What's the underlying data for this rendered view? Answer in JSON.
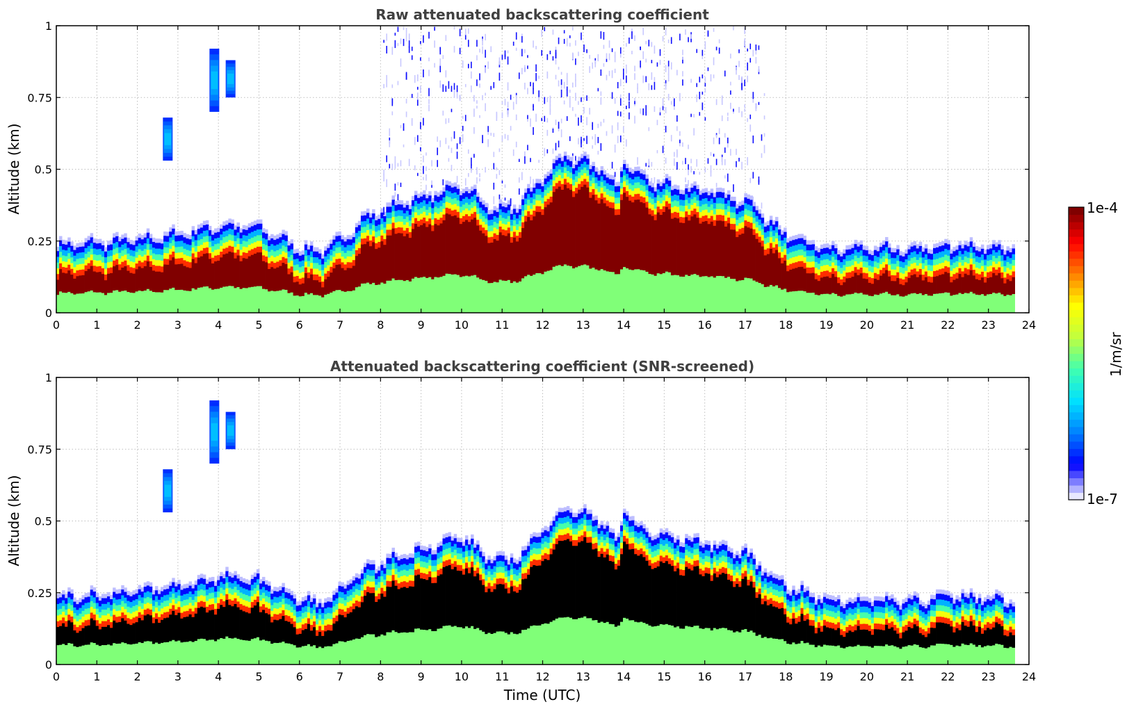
{
  "chart_data": [
    {
      "type": "heatmap",
      "title": "Raw attenuated backscattering coefficient",
      "xlabel": "",
      "ylabel": "Altitude (km)",
      "xlim": [
        0,
        24
      ],
      "ylim": [
        0,
        1
      ],
      "x_ticks": [
        "0",
        "1",
        "2",
        "3",
        "4",
        "5",
        "6",
        "7",
        "8",
        "9",
        "10",
        "11",
        "12",
        "13",
        "14",
        "15",
        "16",
        "17",
        "18",
        "19",
        "20",
        "21",
        "22",
        "23",
        "24"
      ],
      "y_ticks": [
        "0",
        "0.25",
        "0.5",
        "0.75",
        "1"
      ],
      "grid": true,
      "data_coverage_hours": [
        0,
        23.65
      ],
      "boundary_layer_top_km": {
        "x": [
          0,
          1,
          2,
          3,
          4,
          5,
          6,
          6.5,
          7,
          7.5,
          8,
          9,
          10,
          10.5,
          11,
          11.5,
          12,
          12.5,
          13,
          13.5,
          13.8,
          14,
          14.3,
          15,
          16,
          17,
          17.5,
          18,
          18.5,
          19,
          20,
          21,
          22,
          23,
          23.65
        ],
        "y": [
          0.21,
          0.22,
          0.23,
          0.25,
          0.28,
          0.27,
          0.2,
          0.19,
          0.23,
          0.3,
          0.33,
          0.38,
          0.42,
          0.36,
          0.33,
          0.37,
          0.45,
          0.52,
          0.5,
          0.47,
          0.4,
          0.52,
          0.45,
          0.42,
          0.4,
          0.36,
          0.3,
          0.25,
          0.22,
          0.2,
          0.2,
          0.2,
          0.21,
          0.21,
          0.2
        ]
      },
      "noise_region": "sparse signal above 0.5 km between 8 and 17 UTC"
    },
    {
      "type": "heatmap",
      "title": "Attenuated backscattering coefficient (SNR-screened)",
      "xlabel": "Time (UTC)",
      "ylabel": "Altitude (km)",
      "xlim": [
        0,
        24
      ],
      "ylim": [
        0,
        1
      ],
      "x_ticks": [
        "0",
        "1",
        "2",
        "3",
        "4",
        "5",
        "6",
        "7",
        "8",
        "9",
        "10",
        "11",
        "12",
        "13",
        "14",
        "15",
        "16",
        "17",
        "18",
        "19",
        "20",
        "21",
        "22",
        "23",
        "24"
      ],
      "y_ticks": [
        "0",
        "0.25",
        "0.5",
        "0.75",
        "1"
      ],
      "grid": true,
      "data_coverage_hours": [
        0,
        23.65
      ],
      "boundary_layer_top_km": {
        "x": [
          0,
          1,
          2,
          3,
          4,
          5,
          6,
          6.5,
          7,
          7.5,
          8,
          9,
          10,
          10.5,
          11,
          11.5,
          12,
          12.5,
          13,
          13.5,
          13.8,
          14,
          14.3,
          15,
          16,
          17,
          17.5,
          18,
          18.5,
          19,
          20,
          21,
          22,
          23,
          23.65
        ],
        "y": [
          0.21,
          0.22,
          0.23,
          0.25,
          0.28,
          0.27,
          0.2,
          0.19,
          0.23,
          0.3,
          0.33,
          0.38,
          0.42,
          0.36,
          0.33,
          0.37,
          0.45,
          0.52,
          0.5,
          0.47,
          0.4,
          0.52,
          0.45,
          0.42,
          0.4,
          0.36,
          0.3,
          0.25,
          0.22,
          0.2,
          0.2,
          0.2,
          0.21,
          0.21,
          0.2
        ]
      },
      "saturated_core": "black (values above colour range)"
    }
  ],
  "colorbar": {
    "max_label": "1e-4",
    "min_label": "1e-7",
    "unit_label": "1/m/sr",
    "colors": [
      "#e8e8ff",
      "#0000ff",
      "#0080ff",
      "#00e0ff",
      "#40ffb0",
      "#c0ff40",
      "#ffff00",
      "#ff8000",
      "#ff0000",
      "#800000"
    ]
  }
}
